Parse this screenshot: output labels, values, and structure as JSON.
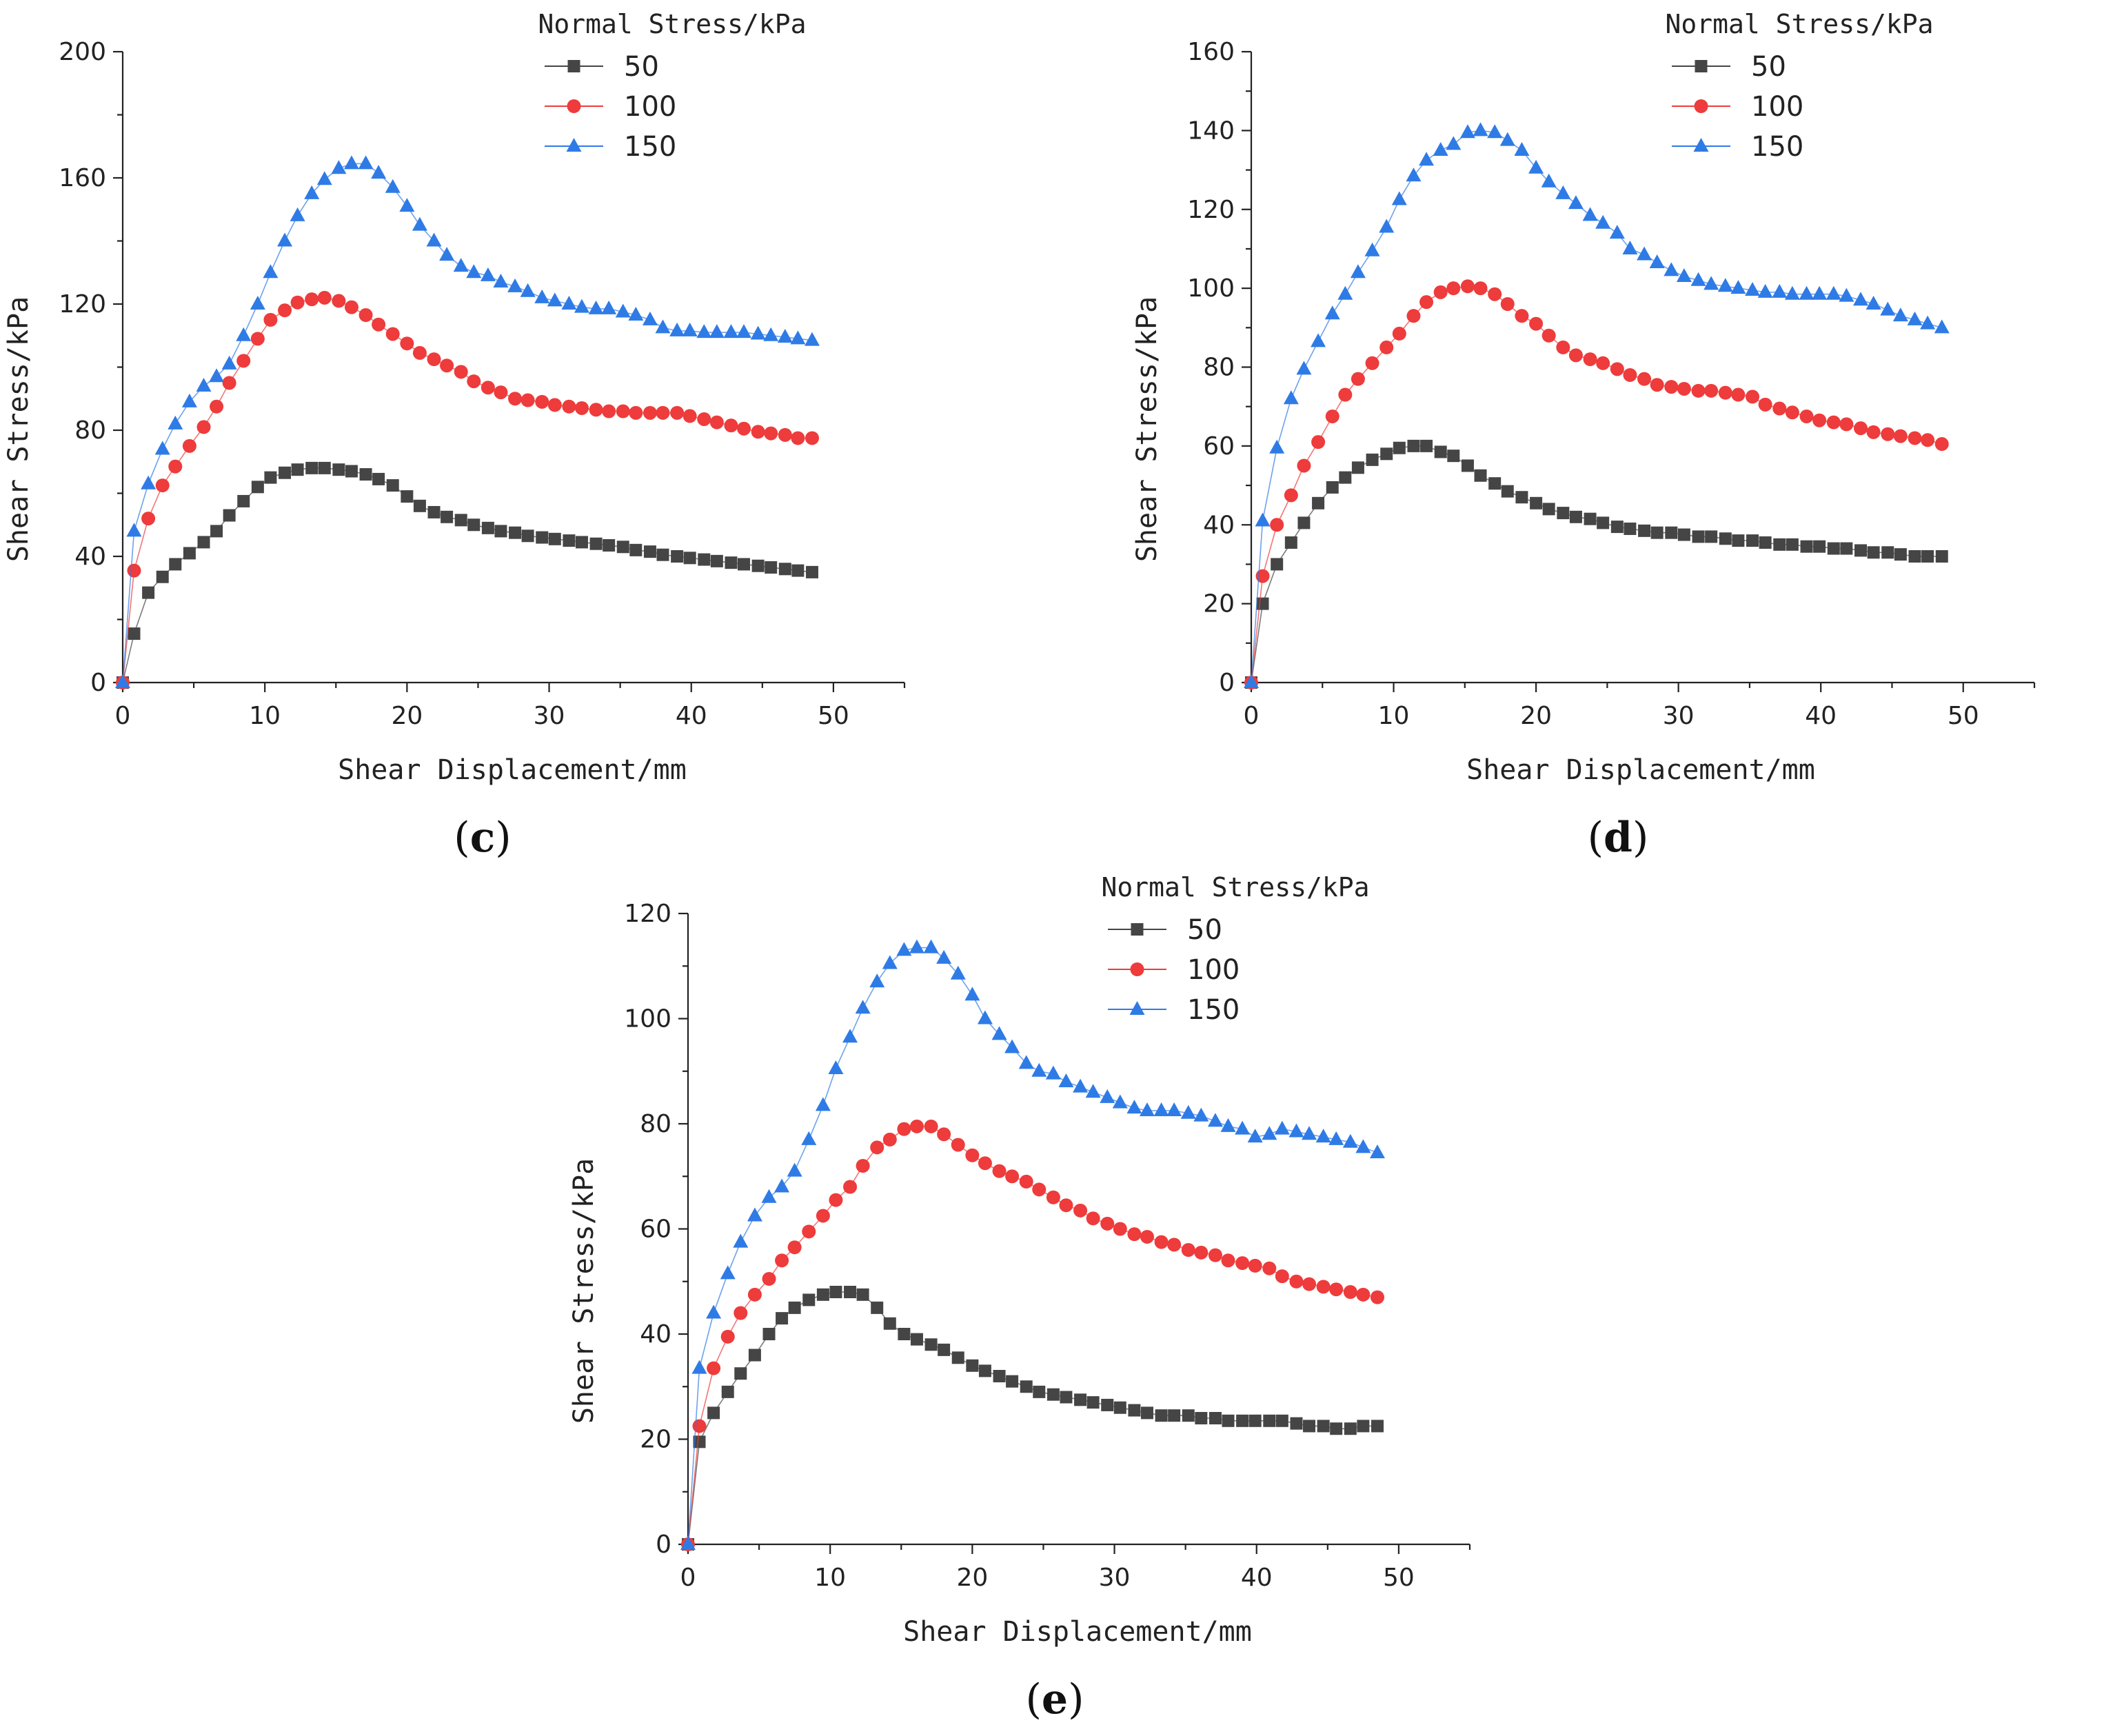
{
  "colors": {
    "s50": "#454545",
    "s100": "#ee3b3b",
    "s150": "#2f7be6",
    "axis": "#222222"
  },
  "chart_data": [
    {
      "id": "c",
      "type": "line",
      "panel_label": "c",
      "xlabel": "Shear Displacement/mm",
      "ylabel": "Shear Stress/kPa",
      "xlim": [
        0,
        55
      ],
      "ylim": [
        0,
        200
      ],
      "xticks": [
        0,
        10,
        20,
        30,
        40,
        50
      ],
      "yticks": [
        0,
        40,
        80,
        120,
        160,
        200
      ],
      "legend_title": "Normal Stress/kPa",
      "series": [
        {
          "name": "50",
          "marker": "square",
          "color": "#454545",
          "x": [
            0,
            0.8,
            1.8,
            2.8,
            3.7,
            4.7,
            5.7,
            6.6,
            7.5,
            8.5,
            9.5,
            10.4,
            11.4,
            12.3,
            13.3,
            14.2,
            15.2,
            16.1,
            17.1,
            18.0,
            19.0,
            20.0,
            20.9,
            21.9,
            22.8,
            23.8,
            24.7,
            25.7,
            26.6,
            27.6,
            28.5,
            29.5,
            30.4,
            31.4,
            32.3,
            33.3,
            34.2,
            35.2,
            36.1,
            37.1,
            38.0,
            39.0,
            39.9,
            40.9,
            41.8,
            42.8,
            43.7,
            44.7,
            45.6,
            46.6,
            47.5,
            48.5
          ],
          "y": [
            0,
            15.5,
            28.5,
            33.5,
            37.5,
            41,
            44.5,
            48,
            53,
            57.5,
            62,
            65,
            66.5,
            67.5,
            68,
            68,
            67.5,
            67,
            66,
            64.5,
            62.5,
            59,
            56,
            54,
            52.5,
            51.5,
            50,
            49,
            48,
            47.5,
            46.5,
            46,
            45.5,
            45,
            44.5,
            44,
            43.5,
            43,
            42,
            41.5,
            40.5,
            40,
            39.5,
            39,
            38.5,
            38,
            37.5,
            37,
            36.5,
            36,
            35.5,
            35
          ]
        },
        {
          "name": "100",
          "marker": "circle",
          "color": "#ee3b3b",
          "x": [
            0,
            0.8,
            1.8,
            2.8,
            3.7,
            4.7,
            5.7,
            6.6,
            7.5,
            8.5,
            9.5,
            10.4,
            11.4,
            12.3,
            13.3,
            14.2,
            15.2,
            16.1,
            17.1,
            18.0,
            19.0,
            20.0,
            20.9,
            21.9,
            22.8,
            23.8,
            24.7,
            25.7,
            26.6,
            27.6,
            28.5,
            29.5,
            30.4,
            31.4,
            32.3,
            33.3,
            34.2,
            35.2,
            36.1,
            37.1,
            38.0,
            39.0,
            39.9,
            40.9,
            41.8,
            42.8,
            43.7,
            44.7,
            45.6,
            46.6,
            47.5,
            48.5
          ],
          "y": [
            0,
            35.5,
            52,
            62.5,
            68.5,
            75,
            81,
            87.5,
            95,
            102,
            109,
            115,
            118,
            120.5,
            121.5,
            122,
            121,
            119,
            116.5,
            113.5,
            110.5,
            107.5,
            104.5,
            102.5,
            100.5,
            98.5,
            95.5,
            93.5,
            92,
            90,
            89.5,
            89,
            88,
            87.5,
            87,
            86.5,
            86,
            86,
            85.5,
            85.5,
            85.5,
            85.5,
            84.5,
            83.5,
            82.5,
            81.5,
            80.5,
            79.5,
            79,
            78.5,
            77.5,
            77.5
          ]
        },
        {
          "name": "150",
          "marker": "triangle",
          "color": "#2f7be6",
          "x": [
            0,
            0.8,
            1.8,
            2.8,
            3.7,
            4.7,
            5.7,
            6.6,
            7.5,
            8.5,
            9.5,
            10.4,
            11.4,
            12.3,
            13.3,
            14.2,
            15.2,
            16.1,
            17.1,
            18.0,
            19.0,
            20.0,
            20.9,
            21.9,
            22.8,
            23.8,
            24.7,
            25.7,
            26.6,
            27.6,
            28.5,
            29.5,
            30.4,
            31.4,
            32.3,
            33.3,
            34.2,
            35.2,
            36.1,
            37.1,
            38.0,
            39.0,
            39.9,
            40.9,
            41.8,
            42.8,
            43.7,
            44.7,
            45.6,
            46.6,
            47.5,
            48.5
          ],
          "y": [
            0,
            48,
            63,
            74,
            82,
            89,
            94,
            97,
            101,
            110,
            120,
            130,
            140,
            148,
            155,
            159.5,
            163,
            164.5,
            164.5,
            161.5,
            157,
            151,
            145,
            140,
            135.5,
            132,
            130,
            129,
            127,
            125.5,
            124,
            122,
            121,
            120,
            119,
            118.5,
            118.5,
            117.5,
            116.5,
            115,
            112.5,
            111.5,
            111.5,
            111,
            111,
            111,
            111,
            110.5,
            110,
            109.5,
            109,
            108.5
          ]
        }
      ]
    },
    {
      "id": "d",
      "type": "line",
      "panel_label": "d",
      "xlabel": "Shear Displacement/mm",
      "ylabel": "Shear Stress/kPa",
      "xlim": [
        0,
        55
      ],
      "ylim": [
        0,
        160
      ],
      "xticks": [
        0,
        10,
        20,
        30,
        40,
        50
      ],
      "yticks": [
        0,
        20,
        40,
        60,
        80,
        100,
        120,
        140,
        160
      ],
      "legend_title": "Normal Stress/kPa",
      "series": [
        {
          "name": "50",
          "marker": "square",
          "color": "#454545",
          "x": [
            0,
            0.8,
            1.8,
            2.8,
            3.7,
            4.7,
            5.7,
            6.6,
            7.5,
            8.5,
            9.5,
            10.4,
            11.4,
            12.3,
            13.3,
            14.2,
            15.2,
            16.1,
            17.1,
            18.0,
            19.0,
            20.0,
            20.9,
            21.9,
            22.8,
            23.8,
            24.7,
            25.7,
            26.6,
            27.6,
            28.5,
            29.5,
            30.4,
            31.4,
            32.3,
            33.3,
            34.2,
            35.2,
            36.1,
            37.1,
            38.0,
            39.0,
            39.9,
            40.9,
            41.8,
            42.8,
            43.7,
            44.7,
            45.6,
            46.6,
            47.5,
            48.5
          ],
          "y": [
            0,
            20,
            30,
            35.5,
            40.5,
            45.5,
            49.5,
            52,
            54.5,
            56.5,
            58,
            59.5,
            60,
            60,
            58.5,
            57.5,
            55,
            52.5,
            50.5,
            48.5,
            47,
            45.5,
            44,
            43,
            42,
            41.5,
            40.5,
            39.5,
            39,
            38.5,
            38,
            38,
            37.5,
            37,
            37,
            36.5,
            36,
            36,
            35.5,
            35,
            35,
            34.5,
            34.5,
            34,
            34,
            33.5,
            33,
            33,
            32.5,
            32,
            32,
            32
          ]
        },
        {
          "name": "100",
          "marker": "circle",
          "color": "#ee3b3b",
          "x": [
            0,
            0.8,
            1.8,
            2.8,
            3.7,
            4.7,
            5.7,
            6.6,
            7.5,
            8.5,
            9.5,
            10.4,
            11.4,
            12.3,
            13.3,
            14.2,
            15.2,
            16.1,
            17.1,
            18.0,
            19.0,
            20.0,
            20.9,
            21.9,
            22.8,
            23.8,
            24.7,
            25.7,
            26.6,
            27.6,
            28.5,
            29.5,
            30.4,
            31.4,
            32.3,
            33.3,
            34.2,
            35.2,
            36.1,
            37.1,
            38.0,
            39.0,
            39.9,
            40.9,
            41.8,
            42.8,
            43.7,
            44.7,
            45.6,
            46.6,
            47.5,
            48.5
          ],
          "y": [
            0,
            27,
            40,
            47.5,
            55,
            61,
            67.5,
            73,
            77,
            81,
            85,
            88.5,
            93,
            96.5,
            99,
            100,
            100.5,
            100,
            98.5,
            96,
            93,
            91,
            88,
            85,
            83,
            82,
            81,
            79.5,
            78,
            77,
            75.5,
            75,
            74.5,
            74,
            74,
            73.5,
            73,
            72.5,
            70.5,
            69.5,
            68.5,
            67.5,
            66.5,
            66,
            65.5,
            64.5,
            63.5,
            63,
            62.5,
            62,
            61.5,
            60.5
          ]
        },
        {
          "name": "150",
          "marker": "triangle",
          "color": "#2f7be6",
          "x": [
            0,
            0.8,
            1.8,
            2.8,
            3.7,
            4.7,
            5.7,
            6.6,
            7.5,
            8.5,
            9.5,
            10.4,
            11.4,
            12.3,
            13.3,
            14.2,
            15.2,
            16.1,
            17.1,
            18.0,
            19.0,
            20.0,
            20.9,
            21.9,
            22.8,
            23.8,
            24.7,
            25.7,
            26.6,
            27.6,
            28.5,
            29.5,
            30.4,
            31.4,
            32.3,
            33.3,
            34.2,
            35.2,
            36.1,
            37.1,
            38.0,
            39.0,
            39.9,
            40.9,
            41.8,
            42.8,
            43.7,
            44.7,
            45.6,
            46.6,
            47.5,
            48.5
          ],
          "y": [
            0,
            41,
            59.5,
            72,
            79.5,
            86.5,
            93.5,
            98.5,
            104,
            109.5,
            115.5,
            122.5,
            128.5,
            132.5,
            135,
            136.5,
            139.5,
            140,
            139.5,
            137.5,
            135,
            130.5,
            127,
            124,
            121.5,
            118.5,
            116.5,
            114,
            110,
            108.5,
            106.5,
            104.5,
            103,
            102,
            101,
            100.5,
            100,
            99.5,
            99,
            99,
            98.5,
            98.5,
            98.5,
            98.5,
            98,
            97,
            96,
            94.5,
            93,
            92,
            91,
            90
          ]
        }
      ]
    },
    {
      "id": "e",
      "type": "line",
      "panel_label": "e",
      "xlabel": "Shear Displacement/mm",
      "ylabel": "Shear Stress/kPa",
      "xlim": [
        0,
        55
      ],
      "ylim": [
        0,
        120
      ],
      "xticks": [
        0,
        10,
        20,
        30,
        40,
        50
      ],
      "yticks": [
        0,
        20,
        40,
        60,
        80,
        100,
        120
      ],
      "legend_title": "Normal Stress/kPa",
      "series": [
        {
          "name": "50",
          "marker": "square",
          "color": "#454545",
          "x": [
            0,
            0.8,
            1.8,
            2.8,
            3.7,
            4.7,
            5.7,
            6.6,
            7.5,
            8.5,
            9.5,
            10.4,
            11.4,
            12.3,
            13.3,
            14.2,
            15.2,
            16.1,
            17.1,
            18.0,
            19.0,
            20.0,
            20.9,
            21.9,
            22.8,
            23.8,
            24.7,
            25.7,
            26.6,
            27.6,
            28.5,
            29.5,
            30.4,
            31.4,
            32.3,
            33.3,
            34.2,
            35.2,
            36.1,
            37.1,
            38.0,
            39.0,
            39.9,
            40.9,
            41.8,
            42.8,
            43.7,
            44.7,
            45.6,
            46.6,
            47.5,
            48.5
          ],
          "y": [
            0,
            19.5,
            25,
            29,
            32.5,
            36,
            40,
            43,
            45,
            46.5,
            47.5,
            48,
            48,
            47.5,
            45,
            42,
            40,
            39,
            38,
            37,
            35.5,
            34,
            33,
            32,
            31,
            30,
            29,
            28.5,
            28,
            27.5,
            27,
            26.5,
            26,
            25.5,
            25,
            24.5,
            24.5,
            24.5,
            24,
            24,
            23.5,
            23.5,
            23.5,
            23.5,
            23.5,
            23,
            22.5,
            22.5,
            22,
            22,
            22.5,
            22.5
          ]
        },
        {
          "name": "100",
          "marker": "circle",
          "color": "#ee3b3b",
          "x": [
            0,
            0.8,
            1.8,
            2.8,
            3.7,
            4.7,
            5.7,
            6.6,
            7.5,
            8.5,
            9.5,
            10.4,
            11.4,
            12.3,
            13.3,
            14.2,
            15.2,
            16.1,
            17.1,
            18.0,
            19.0,
            20.0,
            20.9,
            21.9,
            22.8,
            23.8,
            24.7,
            25.7,
            26.6,
            27.6,
            28.5,
            29.5,
            30.4,
            31.4,
            32.3,
            33.3,
            34.2,
            35.2,
            36.1,
            37.1,
            38.0,
            39.0,
            39.9,
            40.9,
            41.8,
            42.8,
            43.7,
            44.7,
            45.6,
            46.6,
            47.5,
            48.5
          ],
          "y": [
            0,
            22.5,
            33.5,
            39.5,
            44,
            47.5,
            50.5,
            54,
            56.5,
            59.5,
            62.5,
            65.5,
            68,
            72,
            75.5,
            77,
            79,
            79.5,
            79.5,
            78,
            76,
            74,
            72.5,
            71,
            70,
            69,
            67.5,
            66,
            64.5,
            63.5,
            62,
            61,
            60,
            59,
            58.5,
            57.5,
            57,
            56,
            55.5,
            55,
            54,
            53.5,
            53,
            52.5,
            51,
            50,
            49.5,
            49,
            48.5,
            48,
            47.5,
            47
          ]
        },
        {
          "name": "150",
          "marker": "triangle",
          "color": "#2f7be6",
          "x": [
            0,
            0.8,
            1.8,
            2.8,
            3.7,
            4.7,
            5.7,
            6.6,
            7.5,
            8.5,
            9.5,
            10.4,
            11.4,
            12.3,
            13.3,
            14.2,
            15.2,
            16.1,
            17.1,
            18.0,
            19.0,
            20.0,
            20.9,
            21.9,
            22.8,
            23.8,
            24.7,
            25.7,
            26.6,
            27.6,
            28.5,
            29.5,
            30.4,
            31.4,
            32.3,
            33.3,
            34.2,
            35.2,
            36.1,
            37.1,
            38.0,
            39.0,
            39.9,
            40.9,
            41.8,
            42.8,
            43.7,
            44.7,
            45.6,
            46.6,
            47.5,
            48.5
          ],
          "y": [
            0,
            33.5,
            44,
            51.5,
            57.5,
            62.5,
            66,
            68,
            71,
            77,
            83.5,
            90.5,
            96.5,
            102,
            107,
            110.5,
            113,
            113.5,
            113.5,
            111.5,
            108.5,
            104.5,
            100,
            97,
            94.5,
            91.5,
            90,
            89.5,
            88,
            87,
            86,
            85,
            84,
            83,
            82.5,
            82.5,
            82.5,
            82,
            81.5,
            80.5,
            79.5,
            79,
            77.5,
            78,
            79,
            78.5,
            78,
            77.5,
            77,
            76.5,
            75.5,
            74.5
          ]
        }
      ]
    }
  ]
}
